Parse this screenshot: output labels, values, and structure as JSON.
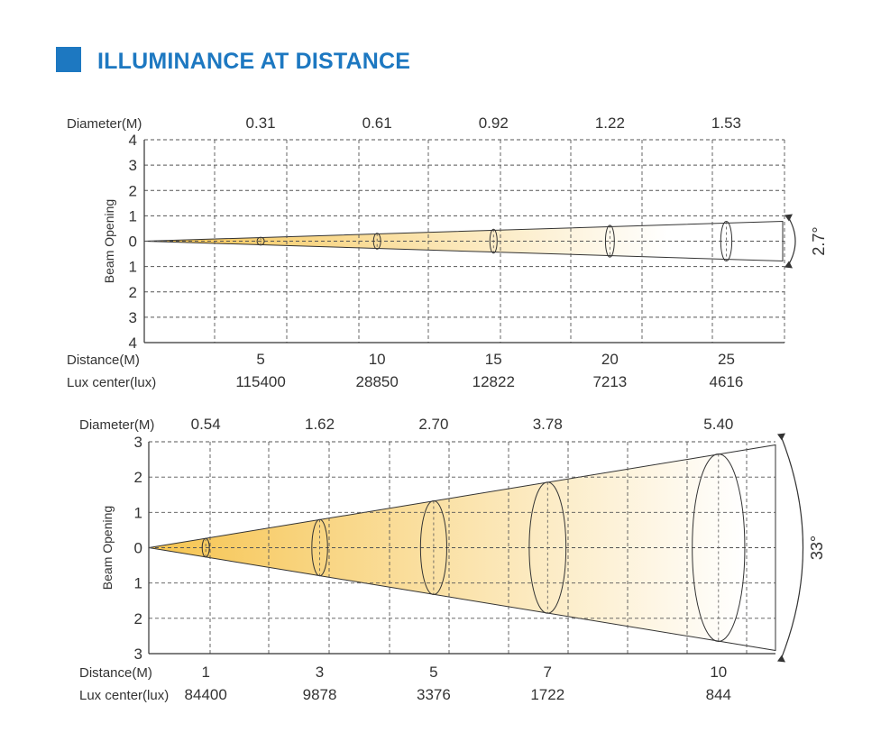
{
  "header": {
    "title": "ILLUMINANCE AT DISTANCE"
  },
  "chart_data": [
    {
      "type": "beam-spread",
      "beam_angle_label": "2.7°",
      "diameter_label": "Diameter(M)",
      "diameter_values": [
        "0.31",
        "0.61",
        "0.92",
        "1.22",
        "1.53"
      ],
      "ylabel": "Beam Opening",
      "y_ticks": [
        "4",
        "3",
        "2",
        "1",
        "0",
        "1",
        "2",
        "3",
        "4"
      ],
      "ylim": [
        -4,
        4
      ],
      "distance_label": "Distance(M)",
      "distances": [
        "5",
        "10",
        "15",
        "20",
        "25"
      ],
      "lux_label": "Lux center(lux)",
      "lux_values": [
        "115400",
        "28850",
        "12822",
        "7213",
        "4616"
      ],
      "xlim": [
        0,
        27.5
      ],
      "colors": {
        "beam_near": "#f6c44f",
        "beam_far": "#ffffff",
        "grid": "#555555"
      }
    },
    {
      "type": "beam-spread",
      "beam_angle_label": "33°",
      "diameter_label": "Diameter(M)",
      "diameter_values": [
        "0.54",
        "1.62",
        "2.70",
        "3.78",
        "5.40"
      ],
      "ylabel": "Beam Opening",
      "y_ticks": [
        "3",
        "2",
        "1",
        "0",
        "1",
        "2",
        "3"
      ],
      "ylim": [
        -3,
        3
      ],
      "distance_label": "Distance(M)",
      "distances": [
        "1",
        "3",
        "5",
        "7",
        "10"
      ],
      "lux_label": "Lux center(lux)",
      "lux_values": [
        "84400",
        "9878",
        "3376",
        "1722",
        "844"
      ],
      "xlim": [
        0,
        11
      ],
      "colors": {
        "beam_near": "#f6c44f",
        "beam_far": "#ffffff",
        "grid": "#555555"
      }
    }
  ]
}
